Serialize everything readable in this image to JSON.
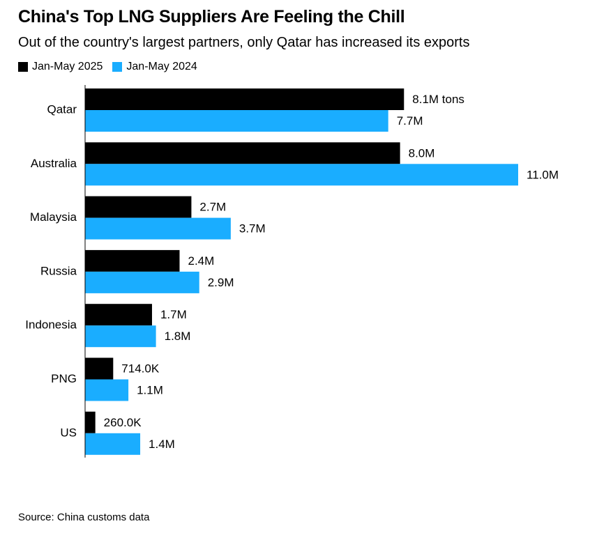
{
  "title": "China's Top LNG Suppliers Are Feeling the Chill",
  "subtitle": "Out of the country's largest partners, only Qatar has increased its exports",
  "source": "Source: China customs data",
  "chart_data": {
    "type": "bar",
    "orientation": "horizontal",
    "categories": [
      "Qatar",
      "Australia",
      "Malaysia",
      "Russia",
      "Indonesia",
      "PNG",
      "US"
    ],
    "series": [
      {
        "name": "Jan-May 2025",
        "color": "#000000",
        "values": [
          8.1,
          8.0,
          2.7,
          2.4,
          1.7,
          0.714,
          0.26
        ],
        "labels": [
          "8.1M tons",
          "8.0M",
          "2.7M",
          "2.4M",
          "1.7M",
          "714.0K",
          "260.0K"
        ]
      },
      {
        "name": "Jan-May 2024",
        "color": "#1aadff",
        "values": [
          7.7,
          11.0,
          3.7,
          2.9,
          1.8,
          1.1,
          1.4
        ],
        "labels": [
          "7.7M",
          "11.0M",
          "3.7M",
          "2.9M",
          "1.8M",
          "1.1M",
          "1.4M"
        ]
      }
    ],
    "xlim": [
      0,
      11.0
    ],
    "unit": "million tons",
    "legend": "top-left",
    "grid": false
  }
}
